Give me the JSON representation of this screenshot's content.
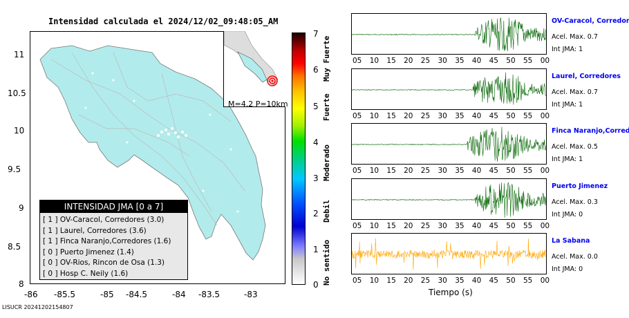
{
  "map": {
    "title": "Intensidad calculada el 2024/12/02_09:48:05_AM",
    "y_ticks": [
      "11",
      "10.5",
      "10",
      "9.5",
      "9",
      "8.5",
      "8"
    ],
    "x_ticks": [
      "-86",
      "-85.5",
      "-85",
      "-84.5",
      "-84",
      "-83.5",
      "-83"
    ],
    "inset_caption": "M=4.2 P=10km",
    "land_color": "#b2ebeb"
  },
  "legend": {
    "title": "INTENSIDAD JMA [0 a 7]",
    "items": [
      "[ 1 ]  OV-Caracol, Corredores (3.0)",
      "[ 1 ]  Laurel, Corredores (3.6)",
      "[ 1 ]  Finca Naranjo,Corredores (1.6)",
      "[ 0 ]  Puerto Jimenez (1.4)",
      "[ 0 ]  OV-Rios, Rincon de Osa (1.3)",
      "[ 0 ]  Hosp C. Neily (1.6)"
    ]
  },
  "colorbar": {
    "ticks": [
      "7",
      "6",
      "5",
      "4",
      "3",
      "2",
      "1",
      "0"
    ],
    "labels": [
      "Muy Fuerte",
      "Fuerte",
      "Moderado",
      "Debil",
      "No sentido"
    ]
  },
  "footer": "LISUCR 20241202154807",
  "waveforms": {
    "xlabel": "Tiempo (s)",
    "ticks": [
      "05",
      "10",
      "15",
      "20",
      "25",
      "30",
      "35",
      "40",
      "45",
      "50",
      "55",
      "00"
    ],
    "stations": [
      {
        "name": "OV-Caracol, Corredores",
        "acel": "Acel. Max. 0.7",
        "jma": "Int JMA: 1",
        "color": "#006400",
        "onset_fraction": 0.63
      },
      {
        "name": "Laurel, Corredores",
        "acel": "Acel. Max. 0.7",
        "jma": "Int JMA: 1",
        "color": "#006400",
        "onset_fraction": 0.62
      },
      {
        "name": "Finca Naranjo,Corredores",
        "acel": "Acel. Max. 0.5",
        "jma": "Int JMA: 1",
        "color": "#006400",
        "onset_fraction": 0.59
      },
      {
        "name": "Puerto Jimenez",
        "acel": "Acel. Max. 0.3",
        "jma": "Int JMA: 0",
        "color": "#006400",
        "onset_fraction": 0.63
      },
      {
        "name": "La Sabana",
        "acel": "Acel. Max. 0.0",
        "jma": "Int JMA: 0",
        "color": "#ffa500",
        "onset_fraction": 0.0
      }
    ]
  }
}
